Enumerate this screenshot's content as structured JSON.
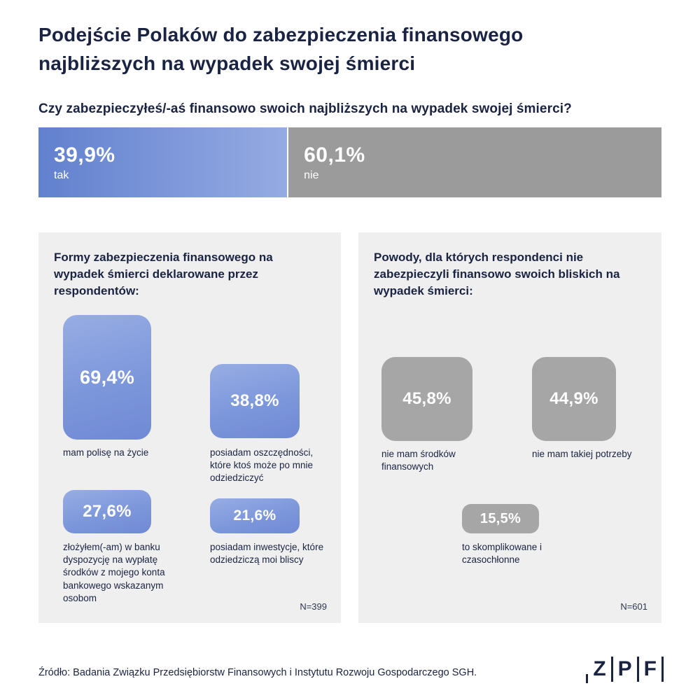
{
  "colors": {
    "navy": "#1a2342",
    "blue_gradient_start": "#6180ce",
    "blue_gradient_end": "#95abe3",
    "gray_bar": "#9b9b9b",
    "gray_tile": "#a6a6a6",
    "panel_background": "#efefef"
  },
  "header": {
    "title": "Podejście Polaków do zabezpieczenia finansowego najbliższych na wypadek swojej śmierci"
  },
  "question": "Czy zabezpieczyłeś/-aś finansowo swoich najbliższych na wypadek swojej śmierci?",
  "answer_bar": {
    "yes_value": "39,9%",
    "yes_label": "tak",
    "no_value": "60,1%",
    "no_label": "nie"
  },
  "left_panel": {
    "heading": "Formy zabezpieczenia finansowego na wypadek śmierci deklarowane przez respondentów:",
    "items": [
      {
        "value": "69,4%",
        "label": "mam polisę na życie"
      },
      {
        "value": "38,8%",
        "label": "posiadam oszczędności, które ktoś może po mnie odziedziczyć"
      },
      {
        "value": "27,6%",
        "label": "złożyłem(-am)  w banku dyspozycję na wypłatę środków z mojego konta bankowego wskazanym osobom"
      },
      {
        "value": "21,6%",
        "label": "posiadam inwestycje, które odziedziczą moi bliscy"
      }
    ],
    "sample": "N=399"
  },
  "right_panel": {
    "heading": "Powody, dla których respondenci nie zabezpieczyli finansowo swoich bliskich na wypadek śmierci:",
    "items": [
      {
        "value": "45,8%",
        "label": "nie mam środków finansowych"
      },
      {
        "value": "44,9%",
        "label": "nie mam takiej potrzeby"
      },
      {
        "value": "15,5%",
        "label": "to skomplikowane i czasochłonne"
      }
    ],
    "sample": "N=601"
  },
  "footer": {
    "source": "Źródło: Badania Związku Przedsiębiorstw Finansowych i Instytutu Rozwoju Gospodarczego SGH.",
    "logo_letters": [
      "Z",
      "P",
      "F"
    ]
  },
  "chart_data": [
    {
      "type": "bar",
      "title": "Czy zabezpieczyłeś/-aś finansowo swoich najbliższych na wypadek swojej śmierci?",
      "categories": [
        "tak",
        "nie"
      ],
      "values": [
        39.9,
        60.1
      ],
      "unit": "%",
      "orientation": "horizontal-stacked",
      "colors": [
        "blue-gradient",
        "gray"
      ]
    },
    {
      "type": "bar",
      "title": "Formy zabezpieczenia finansowego na wypadek śmierci deklarowane przez respondentów:",
      "categories": [
        "mam polisę na życie",
        "posiadam oszczędności, które ktoś może po mnie odziedziczyć",
        "złożyłem(-am)  w banku dyspozycję na wypłatę środków z mojego konta bankowego wskazanym osobom",
        "posiadam inwestycje, które odziedziczą moi bliscy"
      ],
      "values": [
        69.4,
        38.8,
        27.6,
        21.6
      ],
      "unit": "%",
      "sample_size": "N=399",
      "style": "proportional-rounded-squares"
    },
    {
      "type": "bar",
      "title": "Powody, dla których respondenci nie zabezpieczyli finansowo swoich bliskich na wypadek śmierci:",
      "categories": [
        "nie mam środków finansowych",
        "nie mam takiej potrzeby",
        "to skomplikowane i czasochłonne"
      ],
      "values": [
        45.8,
        44.9,
        15.5
      ],
      "unit": "%",
      "sample_size": "N=601",
      "style": "proportional-rounded-squares"
    }
  ]
}
